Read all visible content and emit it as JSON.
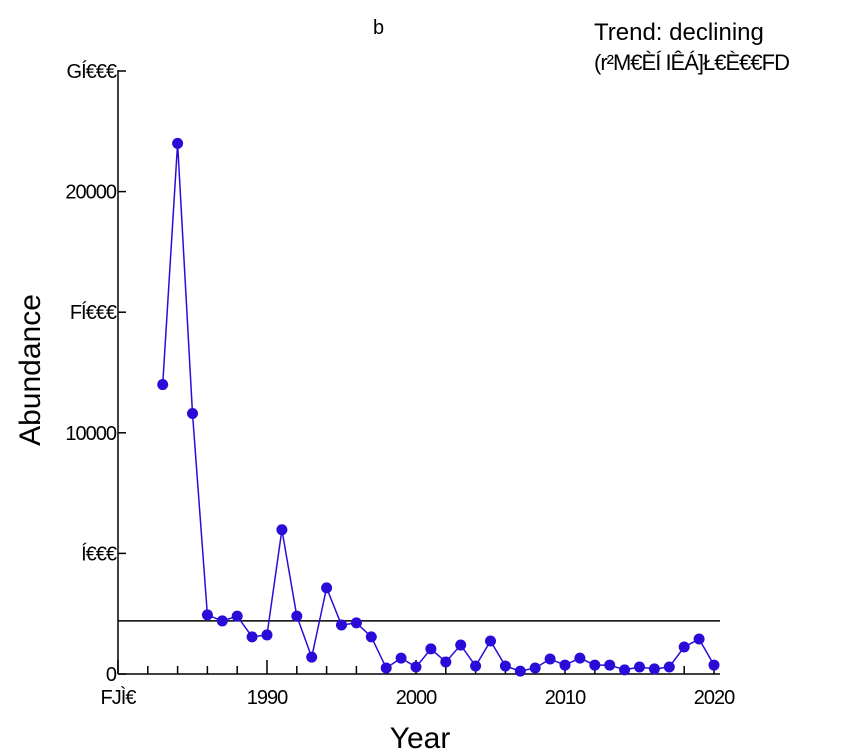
{
  "chart_data": {
    "type": "line",
    "title": "b",
    "annotation": [
      "Trend: declining",
      "(r²M€ÈÍ IÊÁ]Ł€È€€FD"
    ],
    "xlabel": "Year",
    "ylabel": "Abundance",
    "x": [
      1983,
      1984,
      1985,
      1986,
      1987,
      1988,
      1989,
      1990,
      1991,
      1992,
      1993,
      1994,
      1995,
      1996,
      1997,
      1998,
      1999,
      2000,
      2001,
      2002,
      2003,
      2004,
      2005,
      2006,
      2007,
      2008,
      2009,
      2010,
      2011,
      2012,
      2013,
      2014,
      2015,
      2016,
      2017,
      2018,
      2019,
      2020
    ],
    "series": [
      {
        "color": "#2a0cd9",
        "values": [
          12000,
          22000,
          10800,
          2450,
          2200,
          2400,
          1540,
          1620,
          5980,
          2400,
          700,
          3570,
          2030,
          2120,
          1540,
          250,
          660,
          290,
          1040,
          500,
          1200,
          330,
          1370,
          330,
          120,
          250,
          620,
          370,
          660,
          370,
          370,
          170,
          290,
          210,
          290,
          1120,
          1450,
          370
        ]
      }
    ],
    "hline": 2200,
    "xlim": [
      1980,
      2020
    ],
    "ylim": [
      0,
      25000
    ],
    "xticks": [
      {
        "value": 1980,
        "label": "FJÌ€"
      },
      1990,
      2000,
      2010,
      2020
    ],
    "x_minor_ticks": [
      1982,
      1984,
      1986,
      1988,
      1992,
      1994,
      1996,
      1998,
      2002,
      2004,
      2006,
      2008,
      2012,
      2014,
      2016,
      2018
    ],
    "yticks": [
      0,
      {
        "value": 5000,
        "label": "Í€€€"
      },
      10000,
      {
        "value": 15000,
        "label": "FÍ€€€"
      },
      20000,
      {
        "value": 25000,
        "label": "GÍ€€€"
      }
    ]
  }
}
